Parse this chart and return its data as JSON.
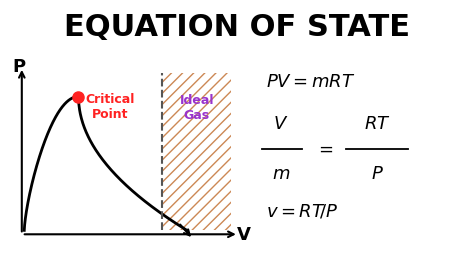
{
  "title": "EQUATION OF STATE",
  "title_fontsize": 22,
  "title_fontweight": "bold",
  "background_color": "#ffffff",
  "curve_color": "#000000",
  "critical_point_color": "#ff2222",
  "critical_point_label": "Critical\nPoint",
  "critical_point_label_color": "#ff2222",
  "ideal_gas_label": "Ideal\nGas",
  "ideal_gas_label_color": "#9933cc",
  "dashed_line_color": "#555555",
  "hatch_color": "#cc8855",
  "axis_label_P": "P",
  "axis_label_V": "V",
  "eq_color": "#000000"
}
